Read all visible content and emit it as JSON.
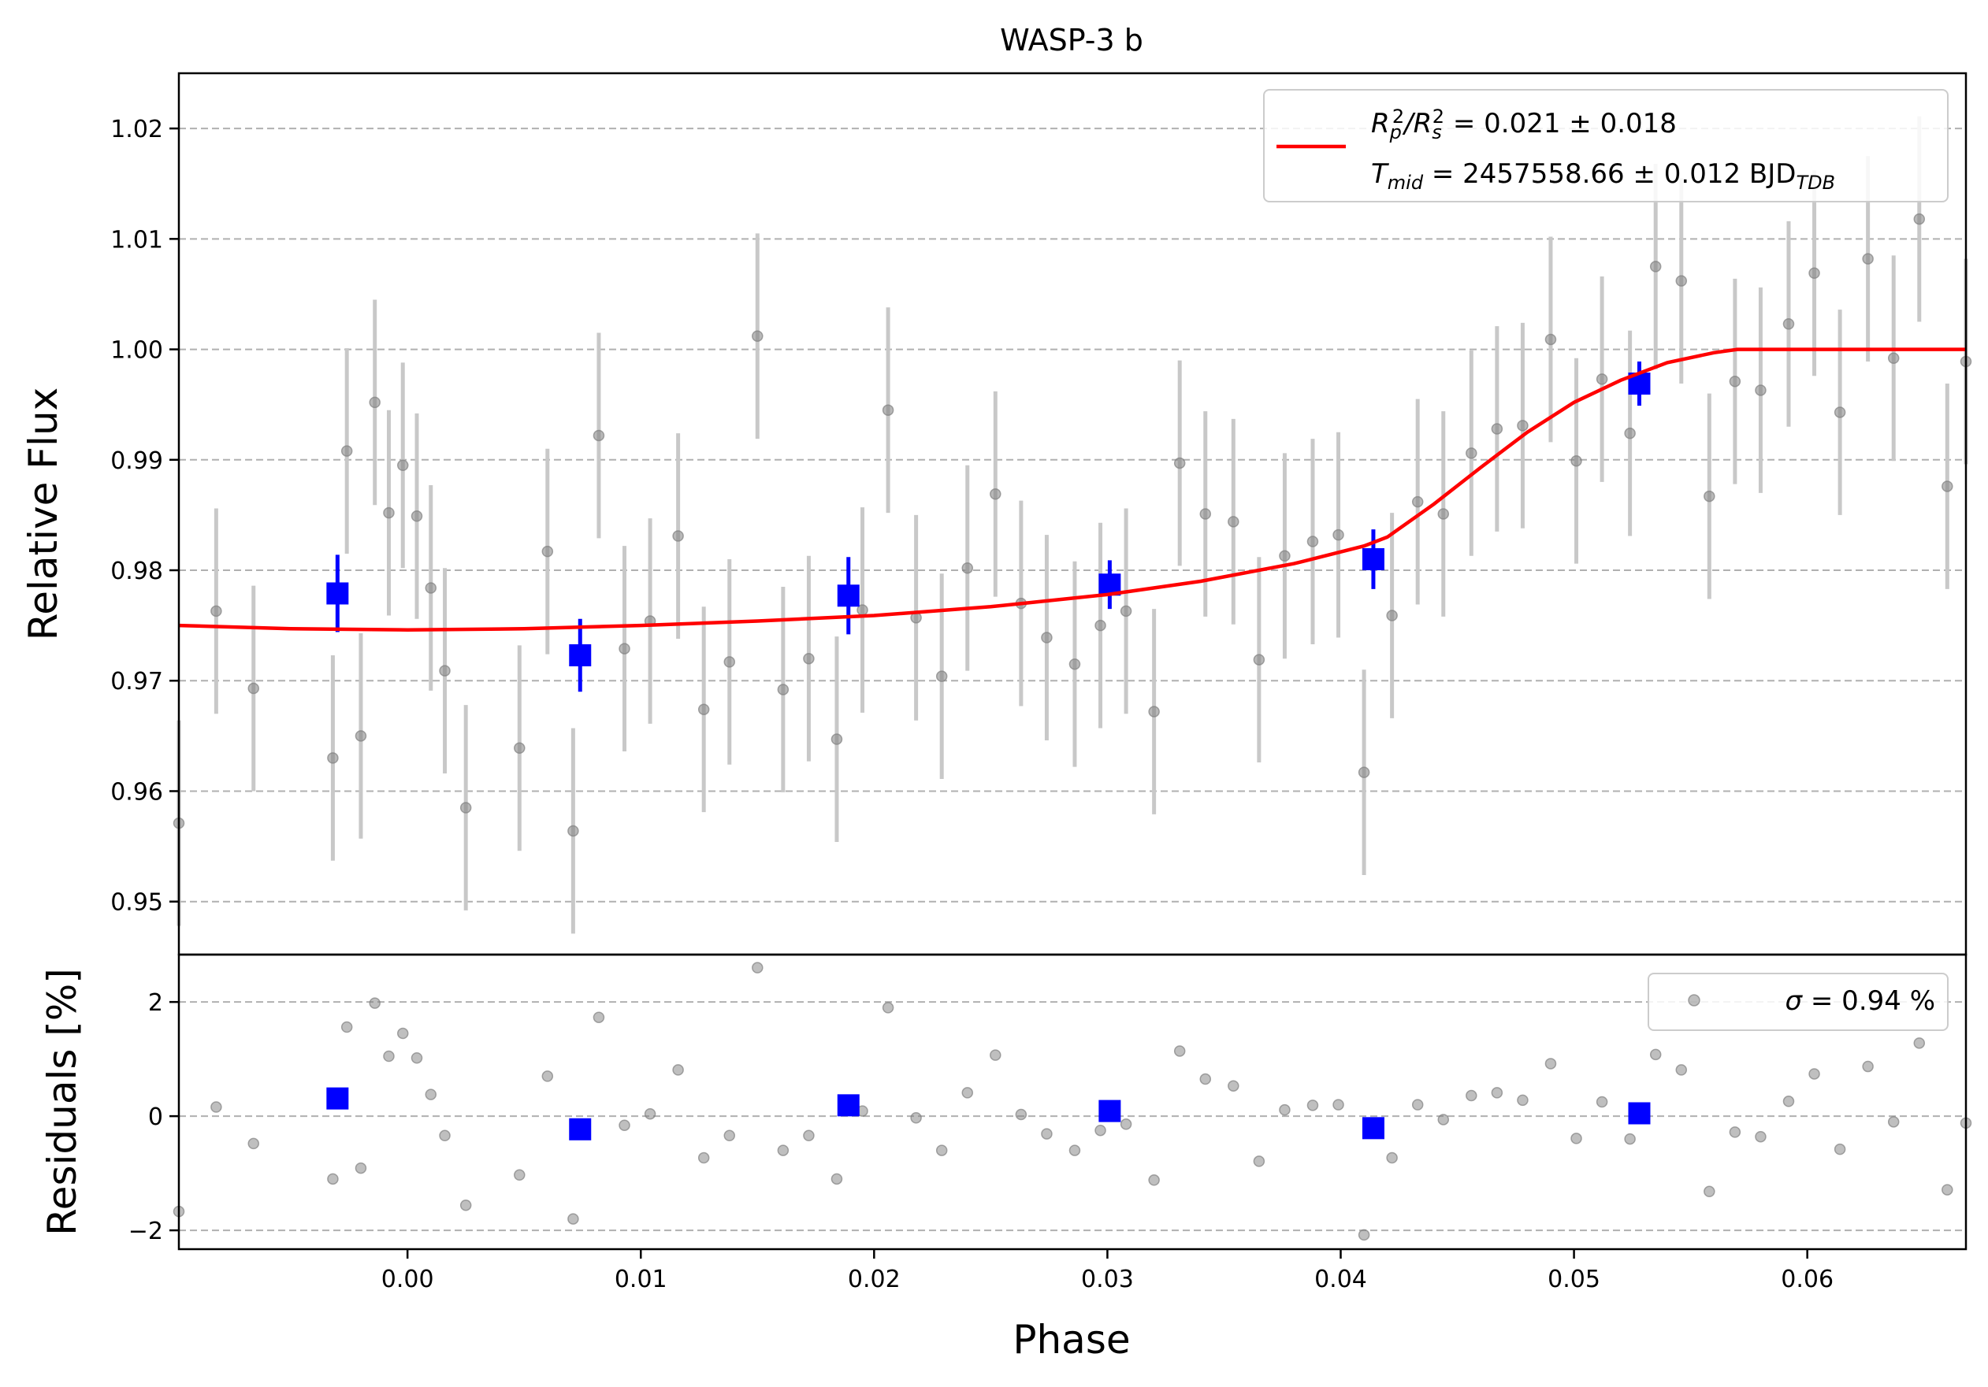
{
  "chart_data": {
    "type": "scatter",
    "title": "WASP-3 b",
    "xlabel": "Phase",
    "xlim": [
      -0.0098,
      0.0668
    ],
    "x_ticks": [
      0.0,
      0.01,
      0.02,
      0.03,
      0.04,
      0.05,
      0.06
    ],
    "x_tick_labels": [
      "0.00",
      "0.01",
      "0.02",
      "0.03",
      "0.04",
      "0.05",
      "0.06"
    ],
    "grid": "horizontal dashed",
    "panels": {
      "main": {
        "ylabel": "Relative Flux",
        "ylim": [
          0.9452,
          1.025
        ],
        "y_ticks": [
          0.95,
          0.96,
          0.97,
          0.98,
          0.99,
          1.0,
          1.01,
          1.02
        ],
        "y_tick_labels": [
          "0.95",
          "0.96",
          "0.97",
          "0.98",
          "0.99",
          "1.00",
          "1.01",
          "1.02"
        ],
        "legend": {
          "placement": "top-right",
          "line_parts": [
            "R",
            "p",
            "2",
            "/R",
            "s",
            "2",
            " = 0.021 ± 0.018"
          ],
          "line2_parts": [
            "T",
            "mid",
            " = 2457558.66 ± 0.012 BJD",
            "TDB"
          ]
        }
      },
      "residuals": {
        "ylabel": "Residuals [%]",
        "ylim": [
          -2.33,
          2.83
        ],
        "y_ticks": [
          -2,
          0,
          2
        ],
        "y_tick_labels": [
          "−2",
          "0",
          "2"
        ],
        "legend": {
          "placement": "top-right",
          "sigma_symbol": "σ",
          "sigma_text": " = 0.94 %"
        }
      }
    },
    "series": [
      {
        "role": "raw data",
        "color": "#808080",
        "errorbar_color": "#c8c8c8",
        "flux_error": 0.0093,
        "x": [
          -0.0098,
          -0.0082,
          -0.0066,
          -0.0032,
          -0.0026,
          -0.002,
          -0.0014,
          -0.0008,
          -0.0002,
          0.0004,
          0.001,
          0.0016,
          0.0025,
          0.0048,
          0.006,
          0.0071,
          0.0082,
          0.0093,
          0.0104,
          0.0116,
          0.0127,
          0.0138,
          0.015,
          0.0161,
          0.0172,
          0.0184,
          0.0195,
          0.0206,
          0.0218,
          0.0229,
          0.024,
          0.0252,
          0.0263,
          0.0274,
          0.0286,
          0.0297,
          0.0308,
          0.032,
          0.0331,
          0.0342,
          0.0354,
          0.0365,
          0.0376,
          0.0388,
          0.0399,
          0.041,
          0.0422,
          0.0433,
          0.0444,
          0.0456,
          0.0467,
          0.0478,
          0.049,
          0.0501,
          0.0512,
          0.0524,
          0.0535,
          0.0546,
          0.0558,
          0.0569,
          0.058,
          0.0592,
          0.0603,
          0.0614,
          0.0626,
          0.0637,
          0.0648,
          0.066,
          0.0668
        ],
        "y": [
          0.9571,
          0.9763,
          0.9693,
          0.963,
          0.9908,
          0.965,
          0.9952,
          0.9852,
          0.9895,
          0.9849,
          0.9784,
          0.9709,
          0.9585,
          0.9639,
          0.9817,
          0.9564,
          0.9922,
          0.9729,
          0.9754,
          0.9831,
          0.9674,
          0.9717,
          1.0012,
          0.9692,
          0.972,
          0.9647,
          0.9764,
          0.9945,
          0.9757,
          0.9704,
          0.9802,
          0.9869,
          0.977,
          0.9739,
          0.9715,
          0.975,
          0.9763,
          0.9672,
          0.9897,
          0.9851,
          0.9844,
          0.9719,
          0.9813,
          0.9826,
          0.9832,
          0.9617,
          0.9759,
          0.9862,
          0.9851,
          0.9906,
          0.9928,
          0.9931,
          1.0009,
          0.9899,
          0.9973,
          0.9924,
          1.0075,
          1.0062,
          0.9867,
          0.9971,
          0.9963,
          1.0023,
          1.0069,
          0.9943,
          1.0082,
          0.9992,
          1.0118,
          0.9876,
          0.9989
        ],
        "residuals": [
          -1.67,
          0.16,
          -0.48,
          -1.1,
          1.56,
          -0.91,
          1.98,
          1.05,
          1.45,
          1.02,
          0.38,
          -0.34,
          -1.56,
          -1.03,
          0.7,
          -1.8,
          1.73,
          -0.16,
          0.04,
          0.81,
          -0.73,
          -0.34,
          2.6,
          -0.6,
          -0.34,
          -1.1,
          0.09,
          1.9,
          -0.03,
          -0.6,
          0.41,
          1.07,
          0.03,
          -0.31,
          -0.6,
          -0.25,
          -0.14,
          -1.12,
          1.14,
          0.65,
          0.53,
          -0.79,
          0.11,
          0.19,
          0.2,
          -2.08,
          -0.73,
          0.2,
          -0.06,
          0.36,
          0.41,
          0.28,
          0.92,
          -0.39,
          0.25,
          -0.4,
          1.08,
          0.81,
          -1.32,
          -0.28,
          -0.36,
          0.26,
          0.74,
          -0.58,
          0.87,
          -0.1,
          1.28,
          -1.29,
          -0.12
        ]
      },
      {
        "role": "binned data",
        "color": "#0000ff",
        "x": [
          -0.003,
          0.0074,
          0.0189,
          0.0301,
          0.0414,
          0.0528
        ],
        "y": [
          0.9779,
          0.9723,
          0.9777,
          0.9787,
          0.981,
          0.9969
        ],
        "error": [
          0.0035,
          0.0033,
          0.0035,
          0.0022,
          0.0027,
          0.002
        ],
        "residuals": [
          0.31,
          -0.23,
          0.19,
          0.09,
          -0.21,
          0.05
        ]
      },
      {
        "role": "model",
        "color": "#ff0000",
        "x": [
          -0.0098,
          -0.005,
          0.0,
          0.005,
          0.01,
          0.015,
          0.02,
          0.025,
          0.03,
          0.034,
          0.038,
          0.041,
          0.042,
          0.044,
          0.046,
          0.048,
          0.05,
          0.052,
          0.054,
          0.056,
          0.057,
          0.06,
          0.0668
        ],
        "y": [
          0.975,
          0.9747,
          0.9746,
          0.9747,
          0.975,
          0.9754,
          0.9759,
          0.9767,
          0.9778,
          0.979,
          0.9806,
          0.9822,
          0.983,
          0.986,
          0.9893,
          0.9925,
          0.9952,
          0.9972,
          0.9988,
          0.9997,
          1.0,
          1.0,
          1.0
        ]
      }
    ]
  }
}
